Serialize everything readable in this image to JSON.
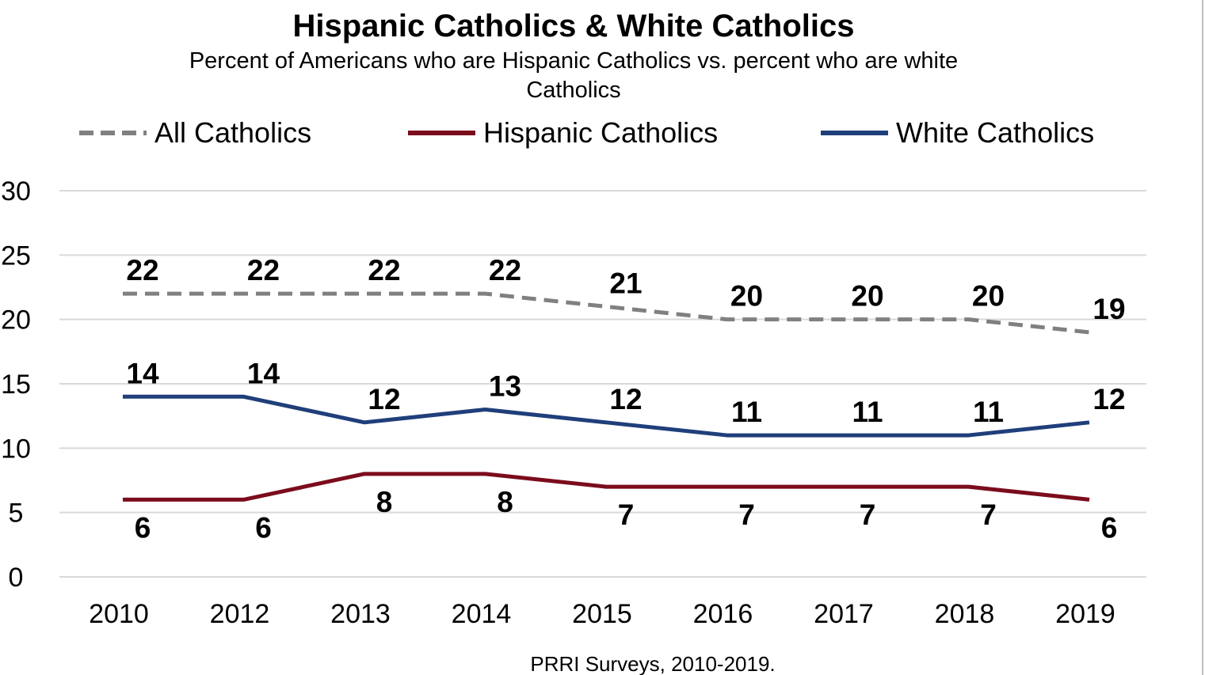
{
  "chart_data": {
    "type": "line",
    "title": "Hispanic Catholics & White Catholics",
    "subtitle_lines": [
      "Percent of Americans who are Hispanic Catholics vs. percent who are white",
      "Catholics"
    ],
    "source": "PRRI Surveys, 2010-2019.",
    "categories": [
      "2010",
      "2012",
      "2013",
      "2014",
      "2015",
      "2016",
      "2017",
      "2018",
      "2019"
    ],
    "ylim": [
      0,
      30
    ],
    "yticks": [
      0,
      5,
      10,
      15,
      20,
      25,
      30
    ],
    "grid": true,
    "legend_position": "top",
    "series": [
      {
        "name": "All Catholics",
        "values": [
          22,
          22,
          22,
          22,
          21,
          20,
          20,
          20,
          19
        ],
        "color": "#808080",
        "dashed": true,
        "label_position": "above"
      },
      {
        "name": "Hispanic Catholics",
        "values": [
          6,
          6,
          8,
          8,
          7,
          7,
          7,
          7,
          6
        ],
        "color": "#7b0c1c",
        "dashed": false,
        "label_position": "below"
      },
      {
        "name": "White Catholics",
        "values": [
          14,
          14,
          12,
          13,
          12,
          11,
          11,
          11,
          12
        ],
        "color": "#1f3f7a",
        "dashed": false,
        "label_position": "above"
      }
    ]
  }
}
